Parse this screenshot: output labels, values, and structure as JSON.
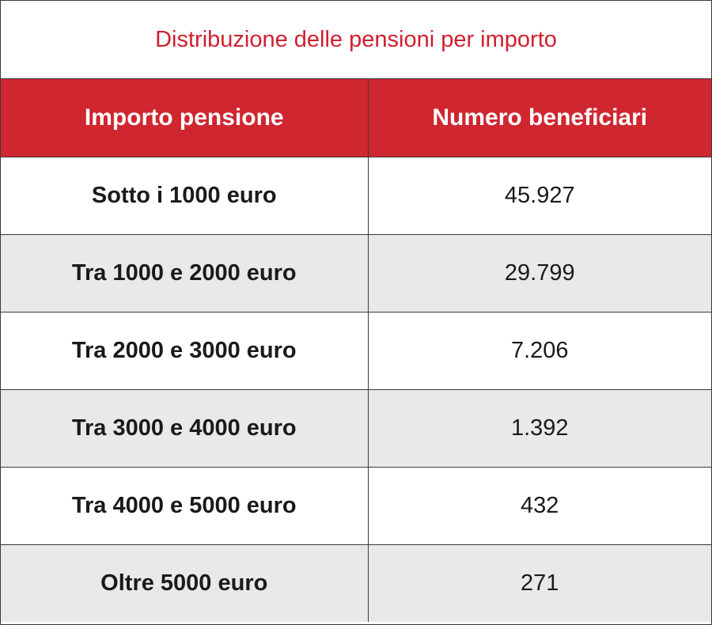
{
  "chart_data": {
    "type": "table",
    "title": "Distribuzione delle pensioni per importo",
    "columns": [
      "Importo pensione",
      "Numero beneficiari"
    ],
    "rows": [
      {
        "label": "Sotto i 1000 euro",
        "value": "45.927"
      },
      {
        "label": "Tra 1000 e 2000 euro",
        "value": "29.799"
      },
      {
        "label": "Tra 2000 e 3000 euro",
        "value": "7.206"
      },
      {
        "label": "Tra 3000 e 4000 euro",
        "value": "1.392"
      },
      {
        "label": "Tra 4000 e 5000 euro",
        "value": "432"
      },
      {
        "label": "Oltre 5000 euro",
        "value": "271"
      }
    ]
  },
  "colors": {
    "title": "#d0202f",
    "header_background": "#d0262f",
    "header_text": "#ffffff",
    "stripe": "#e9e9e9",
    "border": "#3a3a3a"
  }
}
